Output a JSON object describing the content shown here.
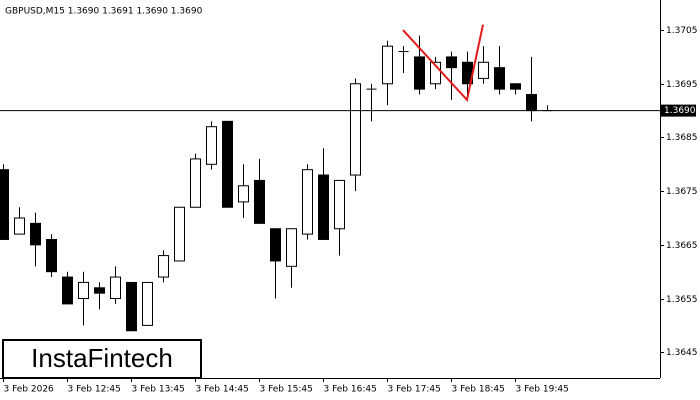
{
  "chart_data": {
    "type": "candlestick",
    "title": "GBPUSD,M15  1.3690 1.3691 1.3690 1.3690",
    "logo": "InstaFintech",
    "categories": [
      "3 Feb 2026",
      null,
      null,
      null,
      "3 Feb 12:45",
      null,
      null,
      null,
      "3 Feb 13:45",
      null,
      null,
      null,
      "3 Feb 14:45",
      null,
      null,
      null,
      "3 Feb 15:45",
      null,
      null,
      null,
      "3 Feb 16:45",
      null,
      null,
      null,
      "3 Feb 17:45",
      null,
      null,
      null,
      "3 Feb 18:45",
      null,
      null,
      null,
      "3 Feb 19:45",
      null,
      null
    ],
    "open": [
      1.3679,
      1.3667,
      1.3669,
      1.3666,
      1.3659,
      1.3655,
      1.3657,
      1.3655,
      1.3658,
      1.365,
      1.3659,
      1.3662,
      1.3672,
      1.368,
      1.3688,
      1.3673,
      1.3677,
      1.3668,
      1.3661,
      1.3667,
      1.3678,
      1.3668,
      1.3678,
      1.3694,
      1.3695,
      1.3701,
      1.37,
      1.3695,
      1.37,
      1.3699,
      1.3696,
      1.3698,
      1.3695,
      1.3693,
      1.369
    ],
    "high": [
      1.368,
      1.3672,
      1.3671,
      1.3667,
      1.366,
      1.366,
      1.3658,
      1.3661,
      1.3658,
      1.3658,
      1.3664,
      1.3672,
      1.3682,
      1.3688,
      1.3688,
      1.368,
      1.3681,
      1.3668,
      1.3668,
      1.368,
      1.3683,
      1.3677,
      1.3696,
      1.3695,
      1.3703,
      1.3702,
      1.3704,
      1.37,
      1.3701,
      1.3701,
      1.3702,
      1.3702,
      1.3695,
      1.37,
      1.3691
    ],
    "low": [
      1.3666,
      1.3667,
      1.3661,
      1.3659,
      1.3654,
      1.365,
      1.3653,
      1.3654,
      1.3649,
      1.365,
      1.3658,
      1.3662,
      1.3672,
      1.3679,
      1.3672,
      1.367,
      1.3669,
      1.3655,
      1.3657,
      1.3666,
      1.3666,
      1.3663,
      1.3675,
      1.3688,
      1.3691,
      1.3697,
      1.3693,
      1.3694,
      1.3692,
      1.3692,
      1.3695,
      1.3693,
      1.3693,
      1.3688,
      1.369
    ],
    "close": [
      1.3666,
      1.367,
      1.3665,
      1.366,
      1.3654,
      1.3658,
      1.3656,
      1.3659,
      1.3649,
      1.3658,
      1.3663,
      1.3672,
      1.3681,
      1.3687,
      1.3672,
      1.3676,
      1.3669,
      1.3662,
      1.3668,
      1.3679,
      1.3666,
      1.3677,
      1.3695,
      1.3694,
      1.3702,
      1.3701,
      1.3694,
      1.3699,
      1.3698,
      1.3695,
      1.3699,
      1.3694,
      1.3694,
      1.369,
      1.369
    ],
    "pattern": {
      "color": "#e31b1b",
      "x": [
        25,
        29,
        30
      ],
      "values": [
        1.3705,
        1.3692,
        1.3706
      ]
    },
    "current_price": {
      "value": 1.369,
      "label": "1.3690"
    },
    "ylim": [
      1.36402,
      1.37106
    ],
    "yticks": [
      1.3645,
      1.3655,
      1.3665,
      1.3675,
      1.3685,
      1.3695,
      1.3705
    ]
  }
}
